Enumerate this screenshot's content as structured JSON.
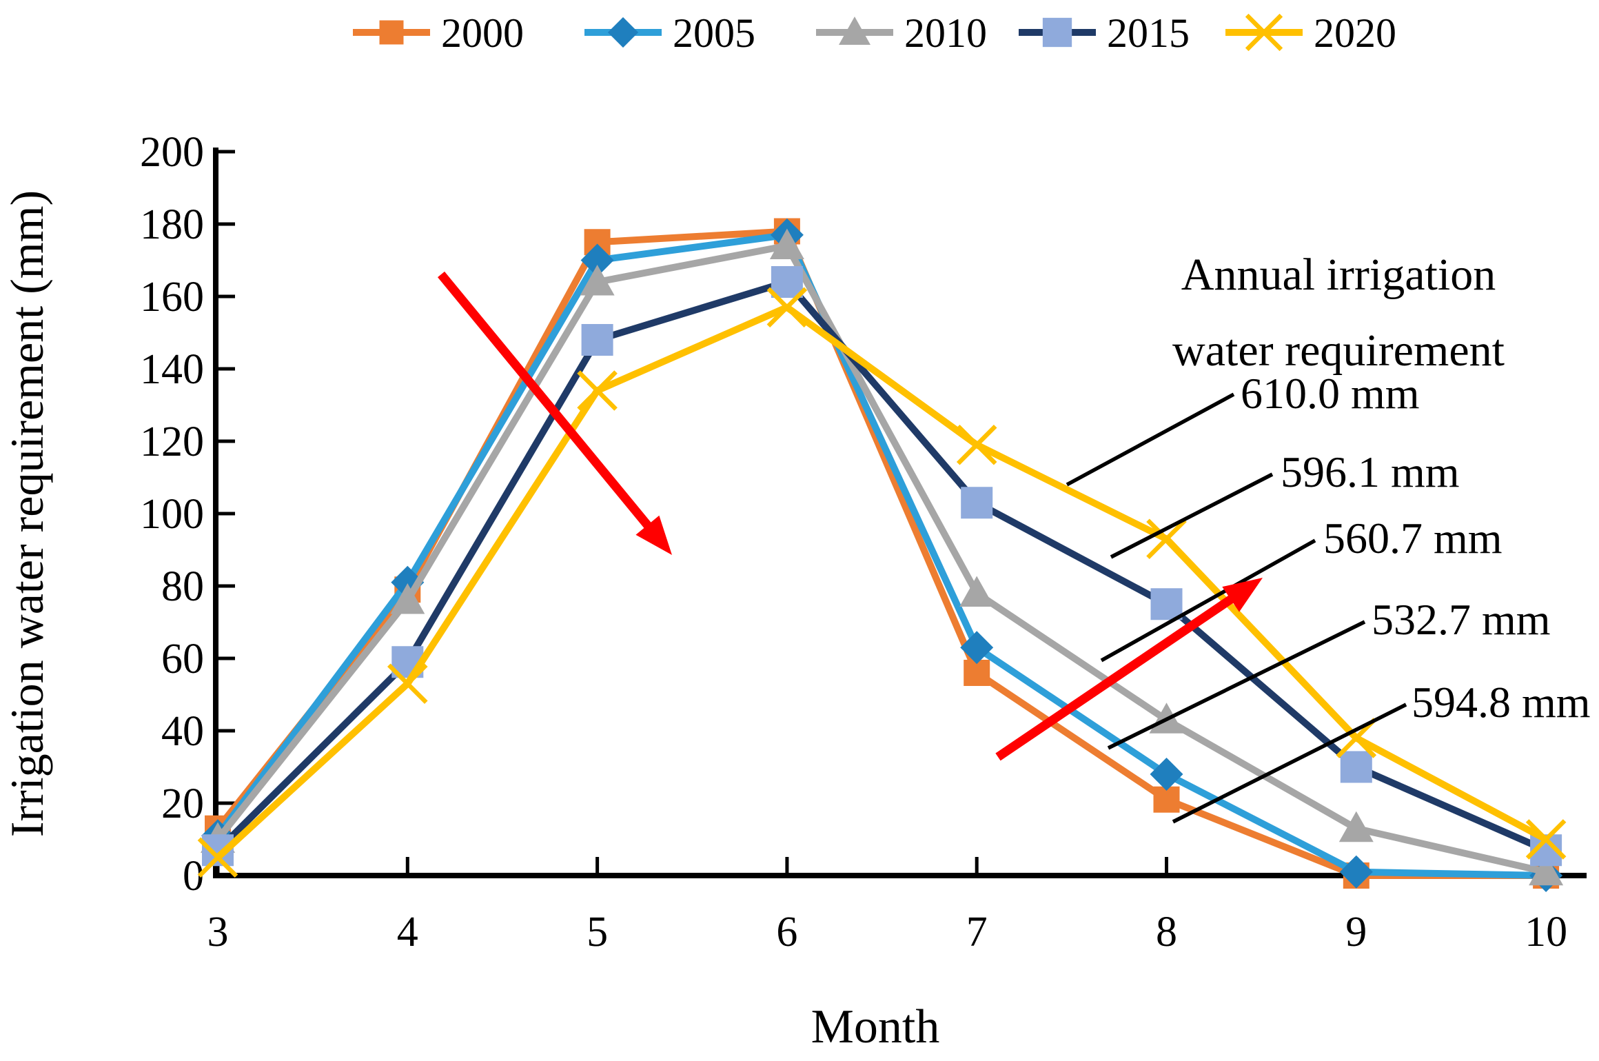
{
  "chart_data": {
    "type": "line",
    "title": "",
    "xlabel": "Month",
    "ylabel": "Irrigation water requirement (mm)",
    "x": [
      3,
      4,
      5,
      6,
      7,
      8,
      9,
      10
    ],
    "xticks": [
      3,
      4,
      5,
      6,
      7,
      8,
      9,
      10
    ],
    "yticks": [
      0,
      20,
      40,
      60,
      80,
      100,
      120,
      140,
      160,
      180,
      200
    ],
    "ylim": [
      0,
      200
    ],
    "grid": "off",
    "legend_position": "top",
    "series": [
      {
        "name": "2000",
        "color": "#ED7D31",
        "marker": "square",
        "marker_fill": "#ED7D31",
        "values": [
          13,
          79,
          175,
          178,
          56,
          21,
          0,
          0
        ],
        "annual_label": "594.8 mm"
      },
      {
        "name": "2005",
        "color": "#2E9FD9",
        "marker": "diamond",
        "marker_fill": "#1F7FBE",
        "values": [
          11,
          81,
          170,
          177,
          63,
          28,
          1,
          0
        ],
        "annual_label": "532.7 mm"
      },
      {
        "name": "2010",
        "color": "#A6A6A6",
        "marker": "triangle",
        "marker_fill": "#A6A6A6",
        "values": [
          10,
          76,
          164,
          174,
          78,
          43,
          13,
          1
        ],
        "annual_label": "560.7 mm"
      },
      {
        "name": "2015",
        "color": "#1F3A67",
        "marker": "square",
        "marker_fill": "#8FAADC",
        "values": [
          7,
          59,
          148,
          164,
          103,
          75,
          30,
          7
        ],
        "annual_label": "596.1 mm"
      },
      {
        "name": "2020",
        "color": "#FFC000",
        "marker": "x",
        "marker_fill": "#FFC000",
        "values": [
          5,
          53,
          134,
          157,
          119,
          93,
          38,
          10
        ],
        "annual_label": "610.0 mm"
      }
    ],
    "annual_heading": {
      "line1": "Annual irrigation",
      "line2": "water requirement"
    },
    "annual_labels_top_to_bottom": [
      "610.0 mm",
      "596.1 mm",
      "560.7 mm",
      "532.7 mm",
      "594.8 mm"
    ],
    "trend_arrow_color": "#FF0000",
    "axis_color": "#000000"
  }
}
